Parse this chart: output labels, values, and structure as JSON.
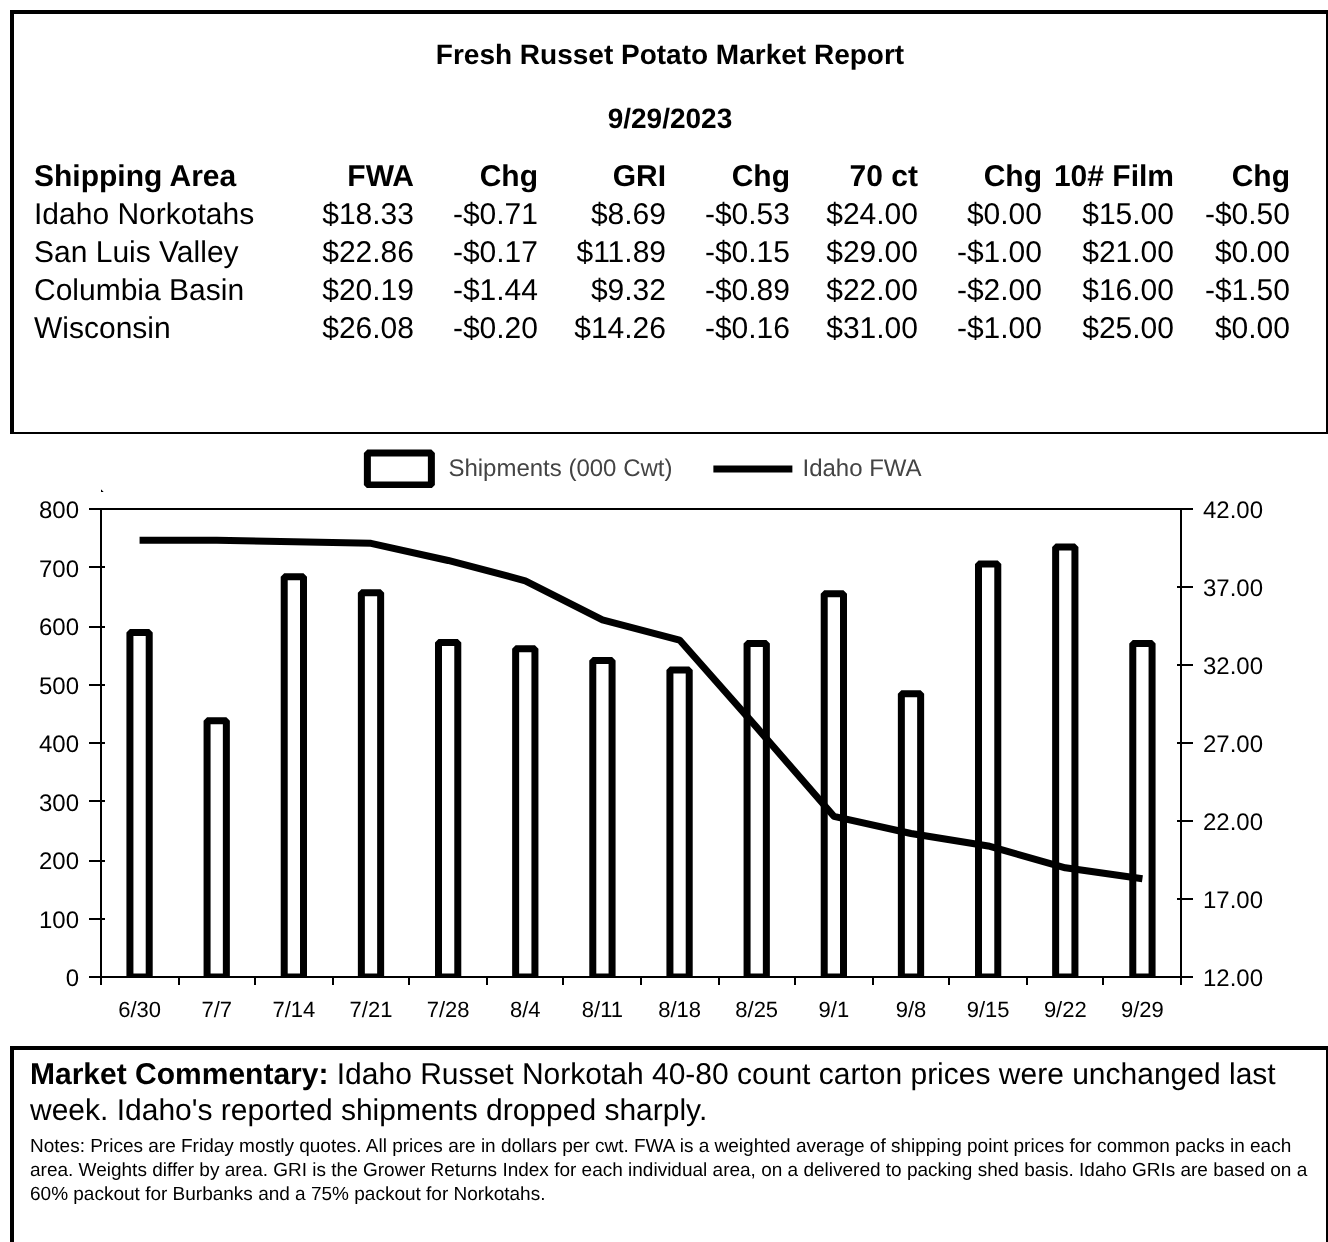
{
  "chart_data": [
    {
      "type": "other",
      "title": "Fresh Russet Potato Market Report",
      "subtitle": "9/29/2023",
      "categories": [
        "Shipping Area",
        "FWA",
        "Chg",
        "GRI",
        "Chg",
        "70 ct",
        "Chg",
        "10# Film",
        "Chg"
      ],
      "y_categories": [
        "Idaho Norkotahs",
        "San Luis Valley",
        "Columbia Basin",
        "Wisconsin"
      ],
      "cell_labels": [
        [
          "$18.33",
          "-$0.71",
          "$8.69",
          "-$0.53",
          "$24.00",
          "$0.00",
          "$15.00",
          "-$0.50"
        ],
        [
          "$22.86",
          "-$0.17",
          "$11.89",
          "-$0.15",
          "$29.00",
          "-$1.00",
          "$21.00",
          "$0.00"
        ],
        [
          "$20.19",
          "-$1.44",
          "$9.32",
          "-$0.89",
          "$22.00",
          "-$2.00",
          "$16.00",
          "-$1.50"
        ],
        [
          "$26.08",
          "-$0.20",
          "$14.26",
          "-$0.16",
          "$31.00",
          "-$1.00",
          "$25.00",
          "$0.00"
        ]
      ]
    },
    {
      "type": "bar",
      "categories": [
        "6/30",
        "7/7",
        "7/14",
        "7/21",
        "7/28",
        "8/4",
        "8/11",
        "8/18",
        "8/25",
        "9/1",
        "9/8",
        "9/15",
        "9/22",
        "9/29"
      ],
      "series": [
        {
          "name": "Shipments (000 Cwt)",
          "type": "bar",
          "color": "#ffffff",
          "values": [
            589,
            438,
            684,
            657,
            572,
            561,
            541,
            525,
            570,
            655,
            484,
            706,
            735,
            570
          ]
        },
        {
          "name": "Idaho FWA",
          "type": "line",
          "axis": "y2",
          "color": "#000000",
          "values": [
            40.0,
            40.0,
            39.9,
            39.8,
            38.7,
            37.4,
            34.9,
            33.6,
            28.0,
            22.3,
            21.2,
            20.4,
            19.0,
            18.3
          ]
        }
      ],
      "ylim": [
        0,
        800
      ],
      "yticks": [
        0,
        100,
        200,
        300,
        400,
        500,
        600,
        700,
        800
      ],
      "y2lim": [
        12,
        42
      ],
      "y2ticks": [
        {
          "value": 12,
          "label": "12.00"
        },
        {
          "value": 17,
          "label": "17.00"
        },
        {
          "value": 22,
          "label": "22.00"
        },
        {
          "value": 27,
          "label": "27.00"
        },
        {
          "value": 32,
          "label": "32.00"
        },
        {
          "value": 37,
          "label": "37.00"
        },
        {
          "value": 42,
          "label": "42.00"
        }
      ],
      "legend": "top",
      "grid": false,
      "annotations": [
        "Market Commentary: Idaho Russet Norkotah 40-80 count carton prices were unchanged last week. Idaho's reported shipments dropped sharply.",
        "Notes: Prices are Friday mostly quotes. All prices are in dollars per cwt. FWA is a weighted average of shipping point prices for  common packs in each area. Weights differ by area. GRI is the Grower Returns Index for each individual area, on a delivered to packing shed basis. Idaho GRIs are based on a 60% packout for Burbanks and a 75% packout for Norkotahs."
      ]
    }
  ]
}
